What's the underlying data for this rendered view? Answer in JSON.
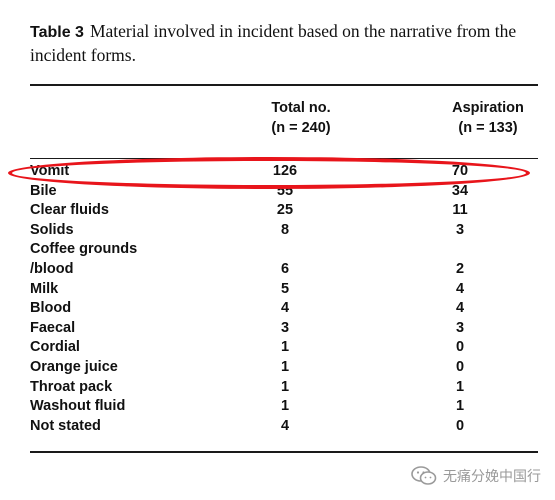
{
  "caption": {
    "label": "Table 3",
    "text": "Material involved in incident based on the narrative from the incident forms."
  },
  "columns": {
    "total": {
      "title": "Total no.",
      "n_prefix": "(n = 240)"
    },
    "aspiration": {
      "title": "Aspiration",
      "n_prefix": "(n = 133)"
    }
  },
  "rows": [
    {
      "label": "Vomit",
      "total": "126",
      "aspiration": "70"
    },
    {
      "label": "Bile",
      "total": "55",
      "aspiration": "34"
    },
    {
      "label": "Clear fluids",
      "total": "25",
      "aspiration": "11"
    },
    {
      "label": "Solids",
      "total": "8",
      "aspiration": "3"
    },
    {
      "label": "Coffee grounds",
      "total": "",
      "aspiration": ""
    },
    {
      "label": "/blood",
      "total": "6",
      "aspiration": "2"
    },
    {
      "label": "Milk",
      "total": "5",
      "aspiration": "4"
    },
    {
      "label": "Blood",
      "total": "4",
      "aspiration": "4"
    },
    {
      "label": "Faecal",
      "total": "3",
      "aspiration": "3"
    },
    {
      "label": "Cordial",
      "total": "1",
      "aspiration": "0"
    },
    {
      "label": "Orange juice",
      "total": "1",
      "aspiration": "0"
    },
    {
      "label": "Throat pack",
      "total": "1",
      "aspiration": "1"
    },
    {
      "label": "Washout fluid",
      "total": "1",
      "aspiration": "1"
    },
    {
      "label": "Not stated",
      "total": "4",
      "aspiration": "0"
    }
  ],
  "highlight_color": "#e8151b",
  "watermark": {
    "text": "无痛分娩中国行",
    "icon": "wechat-icon"
  }
}
